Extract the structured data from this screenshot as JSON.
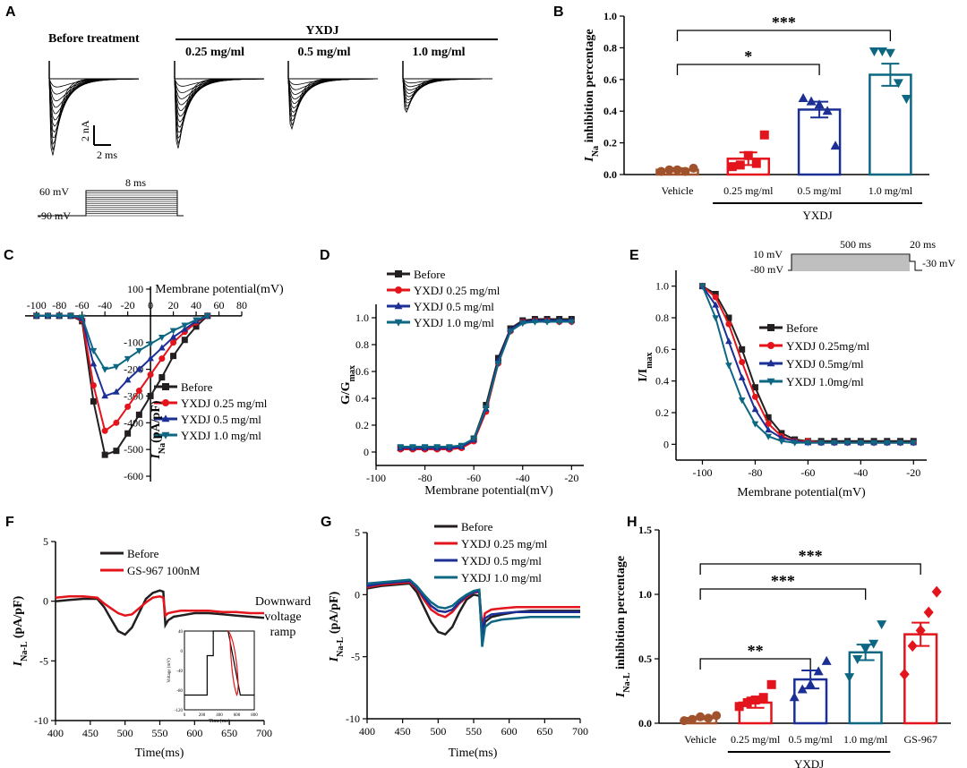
{
  "panels": {
    "A": {
      "label": "A",
      "before_label": "Before treatment",
      "group_label": "YXDJ",
      "conc_labels": [
        "0.25 mg/ml",
        "0.5 mg/ml",
        "1.0 mg/ml"
      ],
      "scale_y": "2 nA",
      "scale_x": "2 ms",
      "protocol": {
        "v_high": "60 mV",
        "v_hold": "-90 mV",
        "duration": "8 ms"
      }
    },
    "E_protocol": {
      "v1": "10 mV",
      "v2": "-80 mV",
      "d1": "500 ms",
      "d2": "20 ms",
      "v3": "-30 mV"
    },
    "F_inset": {
      "ylabel": "Voltage (mV)",
      "xlabel": "Time(ms)",
      "note": "Downward\nvoltage\nramp",
      "yticks": [
        "40",
        "0",
        "-40",
        "-80",
        "-120"
      ],
      "xticks": [
        "0",
        "200",
        "400",
        "600",
        "800"
      ]
    }
  },
  "colors": {
    "before": "#231f20",
    "c025": "#e3141b",
    "c05": "#1b2f95",
    "c10": "#0d6782",
    "vehicle": "#a0522d",
    "gs967": "#e3141b"
  },
  "chart_data": [
    {
      "id": "B",
      "label": "B",
      "type": "bar",
      "title": "",
      "ylabel": "I_Na inhibition percentage",
      "categories": [
        "Vehicle",
        "0.25 mg/ml",
        "0.5 mg/ml",
        "1.0 mg/ml"
      ],
      "group_label": "YXDJ",
      "values": [
        0.03,
        0.1,
        0.41,
        0.63
      ],
      "errors": [
        0.01,
        0.04,
        0.05,
        0.07
      ],
      "points": [
        [
          0.02,
          0.03,
          0.03,
          0.02,
          0.04
        ],
        [
          0.05,
          0.06,
          0.12,
          0.07,
          0.25
        ],
        [
          0.48,
          0.46,
          0.44,
          0.4,
          0.18
        ],
        [
          0.78,
          0.78,
          0.77,
          0.58,
          0.48
        ]
      ],
      "ylim": [
        0,
        1.0
      ],
      "yticks": [
        "0.0",
        "0.2",
        "0.4",
        "0.6",
        "0.8",
        "1.0"
      ],
      "significance": [
        {
          "from": 0,
          "to": 2,
          "label": "*"
        },
        {
          "from": 0,
          "to": 3,
          "label": "***"
        }
      ]
    },
    {
      "id": "C",
      "label": "C",
      "type": "line",
      "xlabel": "Membrane potential(mV)",
      "ylabel": "I_Na(pA/pF)",
      "x": [
        -100,
        -90,
        -80,
        -70,
        -60,
        -50,
        -40,
        -30,
        -20,
        -10,
        0,
        10,
        20,
        30,
        40,
        50
      ],
      "xlim": [
        -110,
        80
      ],
      "ylim": [
        -620,
        110
      ],
      "xticks": [
        "-100",
        "-80",
        "-60",
        "-40",
        "-20",
        "0",
        "20",
        "40",
        "60",
        "80"
      ],
      "yticks": [
        "100",
        "-100",
        "-200",
        "-300",
        "-400",
        "-500",
        "-600"
      ],
      "series": [
        {
          "name": "Before",
          "values": [
            0,
            0,
            0,
            0,
            -20,
            -320,
            -520,
            -505,
            -440,
            -370,
            -300,
            -230,
            -150,
            -90,
            -40,
            0
          ]
        },
        {
          "name": "YXDJ 0.25 mg/ml",
          "values": [
            0,
            0,
            0,
            0,
            -15,
            -260,
            -430,
            -400,
            -340,
            -280,
            -220,
            -160,
            -100,
            -60,
            -25,
            0
          ]
        },
        {
          "name": "YXDJ 0.5 mg/ml",
          "values": [
            0,
            0,
            0,
            0,
            -10,
            -180,
            -300,
            -285,
            -240,
            -200,
            -160,
            -120,
            -80,
            -50,
            -20,
            0
          ]
        },
        {
          "name": "YXDJ 1.0 mg/ml",
          "values": [
            0,
            0,
            0,
            0,
            -5,
            -130,
            -200,
            -190,
            -160,
            -130,
            -105,
            -80,
            -55,
            -35,
            -15,
            0
          ]
        }
      ]
    },
    {
      "id": "D",
      "label": "D",
      "type": "line",
      "xlabel": "Membrane potential(mV)",
      "ylabel": "G/G_max",
      "x": [
        -90,
        -85,
        -80,
        -75,
        -70,
        -65,
        -60,
        -55,
        -50,
        -45,
        -40,
        -35,
        -30,
        -25,
        -20
      ],
      "xlim": [
        -100,
        -15
      ],
      "ylim": [
        -0.1,
        1.1
      ],
      "xticks": [
        "-100",
        "-80",
        "-60",
        "-40",
        "-20"
      ],
      "yticks": [
        "0",
        "0.2",
        "0.4",
        "0.6",
        "0.8",
        "1.0"
      ],
      "series": [
        {
          "name": "Before",
          "values": [
            0.03,
            0.03,
            0.03,
            0.03,
            0.03,
            0.04,
            0.1,
            0.35,
            0.7,
            0.92,
            0.98,
            0.99,
            0.99,
            0.99,
            0.99
          ]
        },
        {
          "name": "YXDJ 0.25 mg/ml",
          "values": [
            0.02,
            0.02,
            0.02,
            0.02,
            0.02,
            0.03,
            0.08,
            0.3,
            0.66,
            0.9,
            0.97,
            0.98,
            0.98,
            0.97,
            0.97
          ]
        },
        {
          "name": "YXDJ 0.5 mg/ml",
          "values": [
            0.03,
            0.03,
            0.03,
            0.03,
            0.03,
            0.04,
            0.09,
            0.32,
            0.68,
            0.91,
            0.97,
            0.98,
            0.98,
            0.98,
            0.98
          ]
        },
        {
          "name": "YXDJ 1.0 mg/ml",
          "values": [
            0.04,
            0.04,
            0.04,
            0.04,
            0.04,
            0.05,
            0.1,
            0.33,
            0.66,
            0.9,
            0.96,
            0.97,
            0.97,
            0.97,
            0.97
          ]
        }
      ]
    },
    {
      "id": "E",
      "label": "E",
      "type": "line",
      "xlabel": "Membrane potential(mV)",
      "ylabel": "I/I_max",
      "x": [
        -100,
        -95,
        -90,
        -85,
        -80,
        -75,
        -70,
        -65,
        -60,
        -55,
        -50,
        -45,
        -40,
        -35,
        -30,
        -25,
        -20
      ],
      "xlim": [
        -110,
        -15
      ],
      "ylim": [
        -0.1,
        1.1
      ],
      "xticks": [
        "-100",
        "-80",
        "-60",
        "-40",
        "-20"
      ],
      "yticks": [
        "0",
        "0.2",
        "0.4",
        "0.6",
        "0.8",
        "1.0"
      ],
      "series": [
        {
          "name": "Before",
          "values": [
            1.0,
            0.95,
            0.8,
            0.6,
            0.36,
            0.17,
            0.07,
            0.03,
            0.02,
            0.02,
            0.02,
            0.02,
            0.02,
            0.02,
            0.02,
            0.02,
            0.02
          ]
        },
        {
          "name": "YXDJ 0.25mg/ml",
          "values": [
            1.0,
            0.93,
            0.76,
            0.52,
            0.3,
            0.13,
            0.05,
            0.02,
            0.02,
            0.01,
            0.01,
            0.01,
            0.01,
            0.01,
            0.01,
            0.01,
            0.01
          ]
        },
        {
          "name": "YXDJ 0.5mg/ml",
          "values": [
            1.0,
            0.88,
            0.65,
            0.42,
            0.22,
            0.09,
            0.04,
            0.02,
            0.01,
            0.01,
            0.01,
            0.01,
            0.01,
            0.01,
            0.01,
            0.01,
            0.01
          ]
        },
        {
          "name": "YXDJ 1.0mg/ml",
          "values": [
            1.0,
            0.8,
            0.5,
            0.28,
            0.13,
            0.05,
            0.02,
            0.01,
            0.01,
            0.01,
            0.01,
            0.01,
            0.01,
            0.01,
            0.01,
            0.01,
            0.01
          ]
        }
      ]
    },
    {
      "id": "F",
      "label": "F",
      "type": "line",
      "xlabel": "Time(ms)",
      "ylabel": "I_Na-L (pA/pF)",
      "x": [
        400,
        420,
        440,
        460,
        470,
        480,
        490,
        500,
        510,
        520,
        530,
        540,
        550,
        555,
        558,
        562,
        570,
        580,
        600,
        620,
        640,
        660,
        680,
        700
      ],
      "xlim": [
        400,
        700
      ],
      "ylim": [
        -10,
        5
      ],
      "xticks": [
        "400",
        "450",
        "500",
        "550",
        "600",
        "650",
        "700"
      ],
      "yticks": [
        "5",
        "0",
        "-5",
        "-10"
      ],
      "series": [
        {
          "name": "Before",
          "values": [
            0,
            0.1,
            0.2,
            0.2,
            -0.5,
            -1.5,
            -2.5,
            -2.8,
            -2.2,
            -1.0,
            0.2,
            0.7,
            0.9,
            0.8,
            -2.0,
            -1.6,
            -1.3,
            -1.2,
            -1.0,
            -1.0,
            -1.1,
            -1.2,
            -1.3,
            -1.4
          ]
        },
        {
          "name": "GS-967 100nM",
          "values": [
            0.3,
            0.4,
            0.4,
            0.3,
            -0.2,
            -0.6,
            -1.0,
            -1.2,
            -1.1,
            -0.6,
            -0.1,
            0.3,
            0.4,
            0.3,
            -1.2,
            -1.0,
            -0.9,
            -0.8,
            -0.8,
            -0.8,
            -0.9,
            -0.9,
            -1.0,
            -1.0
          ]
        }
      ]
    },
    {
      "id": "G",
      "label": "G",
      "type": "line",
      "xlabel": "Time(ms)",
      "ylabel": "I_Na-L (pA/pF)",
      "x": [
        400,
        420,
        440,
        460,
        470,
        480,
        490,
        500,
        510,
        520,
        530,
        540,
        550,
        558,
        562,
        566,
        575,
        590,
        610,
        630,
        650,
        670,
        690,
        700
      ],
      "xlim": [
        400,
        700
      ],
      "ylim": [
        -10,
        5
      ],
      "xticks": [
        "400",
        "450",
        "500",
        "550",
        "600",
        "650",
        "700"
      ],
      "yticks": [
        "5",
        "0",
        "-5",
        "-10"
      ],
      "series": [
        {
          "name": "Before",
          "values": [
            0.5,
            0.7,
            0.8,
            0.9,
            0.2,
            -1.0,
            -2.2,
            -3.0,
            -3.2,
            -2.6,
            -1.4,
            -0.4,
            0.0,
            -0.1,
            -3.6,
            -2.2,
            -1.8,
            -1.6,
            -1.4,
            -1.3,
            -1.3,
            -1.3,
            -1.3,
            -1.3
          ]
        },
        {
          "name": "YXDJ 0.25 mg/ml",
          "values": [
            0.6,
            0.8,
            0.9,
            1.0,
            0.5,
            -0.4,
            -1.2,
            -1.6,
            -1.8,
            -1.4,
            -0.7,
            -0.2,
            0.2,
            0.2,
            -2.6,
            -1.5,
            -1.2,
            -1.1,
            -1.0,
            -1.0,
            -1.0,
            -1.0,
            -1.0,
            -1.0
          ]
        },
        {
          "name": "YXDJ 0.5 mg/ml",
          "values": [
            0.7,
            0.9,
            1.0,
            1.1,
            0.6,
            -0.2,
            -0.9,
            -1.3,
            -1.4,
            -1.2,
            -0.6,
            -0.1,
            0.2,
            0.3,
            -3.0,
            -1.9,
            -1.6,
            -1.5,
            -1.4,
            -1.4,
            -1.4,
            -1.4,
            -1.4,
            -1.4
          ]
        },
        {
          "name": "YXDJ 1.0 mg/ml",
          "values": [
            0.9,
            1.0,
            1.1,
            1.2,
            0.7,
            0.0,
            -0.6,
            -1.0,
            -1.1,
            -0.9,
            -0.4,
            0.0,
            0.3,
            0.4,
            -4.2,
            -2.6,
            -2.2,
            -2.0,
            -1.9,
            -1.8,
            -1.8,
            -1.8,
            -1.8,
            -1.8
          ]
        }
      ]
    },
    {
      "id": "H",
      "label": "H",
      "type": "bar",
      "ylabel": "I_Na-L inhibition percentage",
      "categories": [
        "Vehicle",
        "0.25 mg/ml",
        "0.5 mg/ml",
        "1.0 mg/ml",
        "GS-967"
      ],
      "group_label": "YXDJ",
      "values": [
        0.04,
        0.16,
        0.34,
        0.55,
        0.69
      ],
      "errors": [
        0.01,
        0.04,
        0.07,
        0.06,
        0.09
      ],
      "points": [
        [
          0.02,
          0.03,
          0.05,
          0.04,
          0.06
        ],
        [
          0.13,
          0.16,
          0.18,
          0.2,
          0.3
        ],
        [
          0.2,
          0.26,
          0.3,
          0.4,
          0.48
        ],
        [
          0.36,
          0.5,
          0.58,
          0.62,
          0.77
        ],
        [
          0.38,
          0.6,
          0.72,
          0.86,
          1.02
        ]
      ],
      "ylim": [
        0,
        1.5
      ],
      "yticks": [
        "0.0",
        "0.5",
        "1.0",
        "1.5"
      ],
      "significance": [
        {
          "from": 0,
          "to": 2,
          "label": "**"
        },
        {
          "from": 0,
          "to": 3,
          "label": "***"
        },
        {
          "from": 0,
          "to": 4,
          "label": "***"
        }
      ]
    }
  ]
}
